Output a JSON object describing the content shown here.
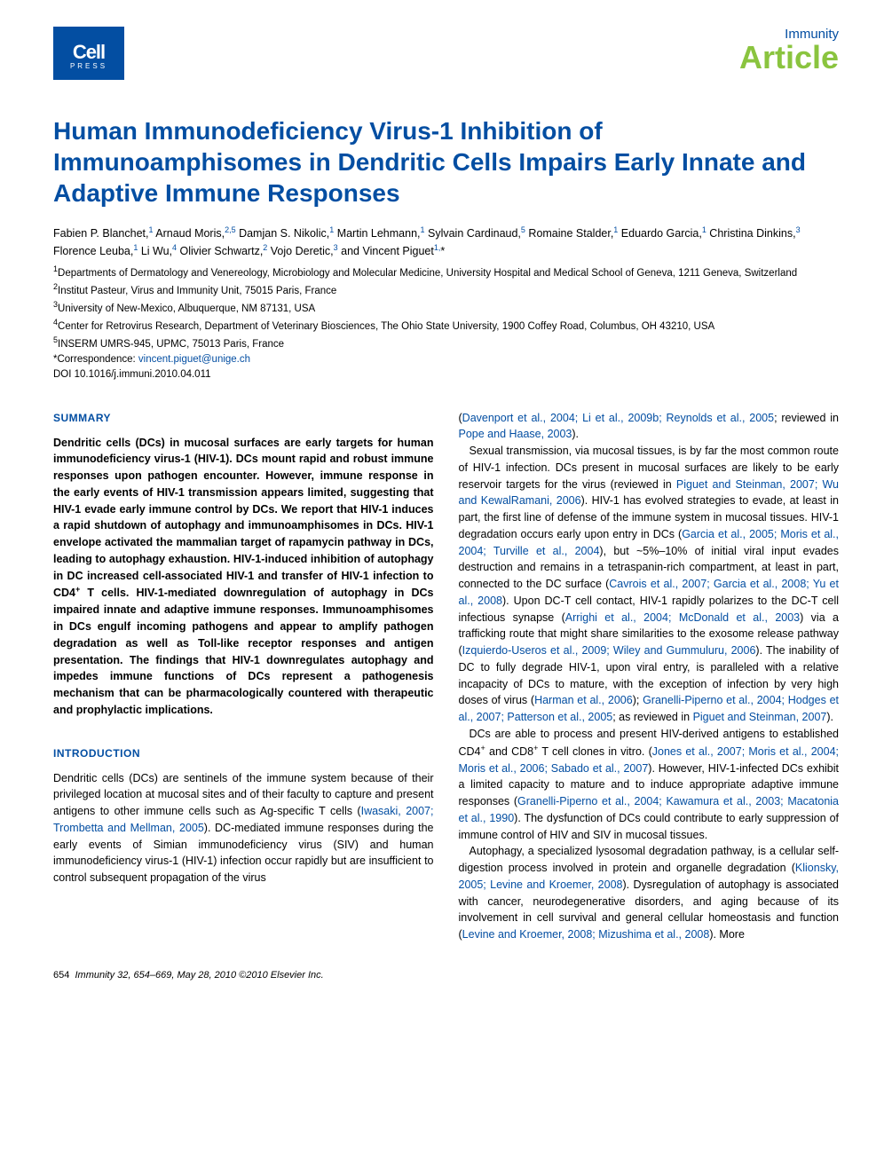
{
  "header": {
    "logo_main": "Cell",
    "logo_sub": "PRESS",
    "journal": "Immunity",
    "article_type": "Article"
  },
  "title": "Human Immunodeficiency Virus-1 Inhibition of Immunoamphisomes in Dendritic Cells Impairs Early Innate and Adaptive Immune Responses",
  "authors_html": "Fabien P. Blanchet,<sup>1</sup> Arnaud Moris,<sup>2,5</sup> Damjan S. Nikolic,<sup>1</sup> Martin Lehmann,<sup>1</sup> Sylvain Cardinaud,<sup>5</sup> Romaine Stalder,<sup>1</sup> Eduardo Garcia,<sup>1</sup> Christina Dinkins,<sup>3</sup> Florence Leuba,<sup>1</sup> Li Wu,<sup>4</sup> Olivier Schwartz,<sup>2</sup> Vojo Deretic,<sup>3</sup> and Vincent Piguet<sup>1,</sup>*",
  "affiliations": {
    "a1": "Departments of Dermatology and Venereology, Microbiology and Molecular Medicine, University Hospital and Medical School of Geneva, 1211 Geneva, Switzerland",
    "a2": "Institut Pasteur, Virus and Immunity Unit, 75015 Paris, France",
    "a3": "University of New-Mexico, Albuquerque, NM 87131, USA",
    "a4": "Center for Retrovirus Research, Department of Veterinary Biosciences, The Ohio State University, 1900 Coffey Road, Columbus, OH 43210, USA",
    "a5": "INSERM UMRS-945, UPMC, 75013 Paris, France",
    "correspondence_label": "*Correspondence: ",
    "correspondence_email": "vincent.piguet@unige.ch",
    "doi": "DOI 10.1016/j.immuni.2010.04.011"
  },
  "summary": {
    "heading": "SUMMARY",
    "text": "Dendritic cells (DCs) in mucosal surfaces are early targets for human immunodeficiency virus-1 (HIV-1). DCs mount rapid and robust immune responses upon pathogen encounter. However, immune response in the early events of HIV-1 transmission appears limited, suggesting that HIV-1 evade early immune control by DCs. We report that HIV-1 induces a rapid shutdown of autophagy and immunoamphisomes in DCs. HIV-1 envelope activated the mammalian target of rapamycin pathway in DCs, leading to autophagy exhaustion. HIV-1-induced inhibition of autophagy in DC increased cell-associated HIV-1 and transfer of HIV-1 infection to CD4+ T cells. HIV-1-mediated downregulation of autophagy in DCs impaired innate and adaptive immune responses. Immunoamphisomes in DCs engulf incoming pathogens and appear to amplify pathogen degradation as well as Toll-like receptor responses and antigen presentation. The findings that HIV-1 downregulates autophagy and impedes immune functions of DCs represent a pathogenesis mechanism that can be pharmacologically countered with therapeutic and prophylactic implications."
  },
  "introduction": {
    "heading": "INTRODUCTION"
  },
  "footer": {
    "page": "654",
    "citation": "Immunity 32, 654–669, May 28, 2010 ©2010 Elsevier Inc."
  },
  "colors": {
    "blue": "#034ea2",
    "green": "#8ac43f",
    "text": "#000000",
    "bg": "#ffffff"
  },
  "typography": {
    "title_size_pt": 21,
    "body_size_pt": 9.5,
    "heading_size_pt": 9,
    "author_size_pt": 9.5,
    "affil_size_pt": 8.5
  }
}
